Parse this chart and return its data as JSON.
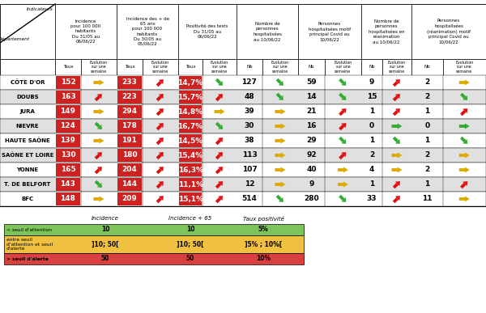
{
  "departments": [
    "CÔTE D'OR",
    "DOUBS",
    "JURA",
    "NIEVRE",
    "HAUTE SAÔNE",
    "SAÔNE ET LOIRE",
    "YONNE",
    "T. DE BELFORT",
    "BFC"
  ],
  "row_bg": [
    "white",
    "#e0e0e0",
    "white",
    "#e0e0e0",
    "white",
    "#e0e0e0",
    "white",
    "#e0e0e0",
    "white"
  ],
  "data": [
    {
      "inc_val": "152",
      "inc_arr": "yellow_right",
      "inc65_val": "233",
      "inc65_arr": "red_up",
      "pos_val": "14,7%",
      "pos_arr": "green_down",
      "hosp_nb": "127",
      "hosp_arr": "green_down",
      "covid_nb": "59",
      "covid_arr": "green_down",
      "rea_nb": "9",
      "rea_arr": "red_up",
      "rc_nb": "2",
      "rc_arr": "yellow_right"
    },
    {
      "inc_val": "163",
      "inc_arr": "red_up",
      "inc65_val": "223",
      "inc65_arr": "red_up",
      "pos_val": "15,7%",
      "pos_arr": "red_up",
      "hosp_nb": "48",
      "hosp_arr": "green_down",
      "covid_nb": "14",
      "covid_arr": "green_down",
      "rea_nb": "15",
      "rea_arr": "red_up",
      "rc_nb": "2",
      "rc_arr": "green_down"
    },
    {
      "inc_val": "149",
      "inc_arr": "yellow_right",
      "inc65_val": "294",
      "inc65_arr": "red_up",
      "pos_val": "14,8%",
      "pos_arr": "yellow_right",
      "hosp_nb": "39",
      "hosp_arr": "yellow_right",
      "covid_nb": "21",
      "covid_arr": "red_up",
      "rea_nb": "1",
      "rea_arr": "red_up",
      "rc_nb": "1",
      "rc_arr": "red_up"
    },
    {
      "inc_val": "124",
      "inc_arr": "green_down",
      "inc65_val": "178",
      "inc65_arr": "red_up",
      "pos_val": "16,7%",
      "pos_arr": "green_down",
      "hosp_nb": "30",
      "hosp_arr": "yellow_right",
      "covid_nb": "16",
      "covid_arr": "red_up",
      "rea_nb": "0",
      "rea_arr": "green_right",
      "rc_nb": "0",
      "rc_arr": "green_right"
    },
    {
      "inc_val": "139",
      "inc_arr": "yellow_right",
      "inc65_val": "191",
      "inc65_arr": "red_up",
      "pos_val": "14,5%",
      "pos_arr": "red_up",
      "hosp_nb": "38",
      "hosp_arr": "yellow_right",
      "covid_nb": "29",
      "covid_arr": "green_down",
      "rea_nb": "1",
      "rea_arr": "green_down",
      "rc_nb": "1",
      "rc_arr": "green_down"
    },
    {
      "inc_val": "130",
      "inc_arr": "red_up",
      "inc65_val": "180",
      "inc65_arr": "red_up",
      "pos_val": "15,4%",
      "pos_arr": "red_up",
      "hosp_nb": "113",
      "hosp_arr": "yellow_right",
      "covid_nb": "92",
      "covid_arr": "red_up",
      "rea_nb": "2",
      "rea_arr": "yellow_right",
      "rc_nb": "2",
      "rc_arr": "yellow_right"
    },
    {
      "inc_val": "165",
      "inc_arr": "red_up",
      "inc65_val": "204",
      "inc65_arr": "red_up",
      "pos_val": "16,3%",
      "pos_arr": "red_up",
      "hosp_nb": "107",
      "hosp_arr": "yellow_right",
      "covid_nb": "40",
      "covid_arr": "yellow_right",
      "rea_nb": "4",
      "rea_arr": "yellow_right",
      "rc_nb": "2",
      "rc_arr": "yellow_right"
    },
    {
      "inc_val": "143",
      "inc_arr": "green_down",
      "inc65_val": "144",
      "inc65_arr": "red_up",
      "pos_val": "11,1%",
      "pos_arr": "red_up",
      "hosp_nb": "12",
      "hosp_arr": "yellow_right",
      "covid_nb": "9",
      "covid_arr": "yellow_right",
      "rea_nb": "1",
      "rea_arr": "red_up",
      "rc_nb": "1",
      "rc_arr": "red_up"
    },
    {
      "inc_val": "148",
      "inc_arr": "yellow_right",
      "inc65_val": "209",
      "inc65_arr": "red_up",
      "pos_val": "15,1%",
      "pos_arr": "red_up",
      "hosp_nb": "514",
      "hosp_arr": "green_down",
      "covid_nb": "280",
      "covid_arr": "green_down",
      "rea_nb": "33",
      "rea_arr": "red_up",
      "rc_nb": "11",
      "rc_arr": "yellow_right"
    }
  ],
  "group_headers": [
    "Incidence\npour 100 000\nhabitants\nDu 31/05 au\n06/06/22",
    "Incidence des + de\n65 ans\npour 100 000\nhabitants\nDu 30/05 au\n05/06/22",
    "Positivité des tests\nDu 31/05 au\n06/06/22",
    "Nombre de\npersonnes\nhospitalisées\nau 10/06/22",
    "Personnes\nhospitalisées motif\nprincipal Covid au\n10/06/22",
    "Nombre de\npersonnes\nhospitalisées en\nréanimation\nau 10/06/22",
    "Personnes\nhospitalisées\n(réanimation) motif\nprincipal Covid au\n10/06/22"
  ],
  "sub_val_labels": [
    "Taux",
    "Taux",
    "Taux",
    "Nb",
    "Nb",
    "Nb",
    "Nb"
  ],
  "red_val_cols": [
    true,
    true,
    true,
    false,
    false,
    false,
    false
  ],
  "legend": {
    "headers": [
      "Incidence",
      "Incidence + 65",
      "Taux positivité"
    ],
    "rows": [
      {
        "label": "< seuil d'attention",
        "vals": [
          "10",
          "10",
          "5%"
        ],
        "color": "#7dc45a"
      },
      {
        "label": "entre seuil\nd'attention et seuil\nd'alerte",
        "vals": [
          "]10; 50[",
          "]10; 50[",
          "]5% ; 10%["
        ],
        "color": "#f0c040"
      },
      {
        "label": "> seuil d'alerte",
        "vals": [
          "50",
          "50",
          "10%"
        ],
        "color": "#d94040"
      }
    ]
  }
}
